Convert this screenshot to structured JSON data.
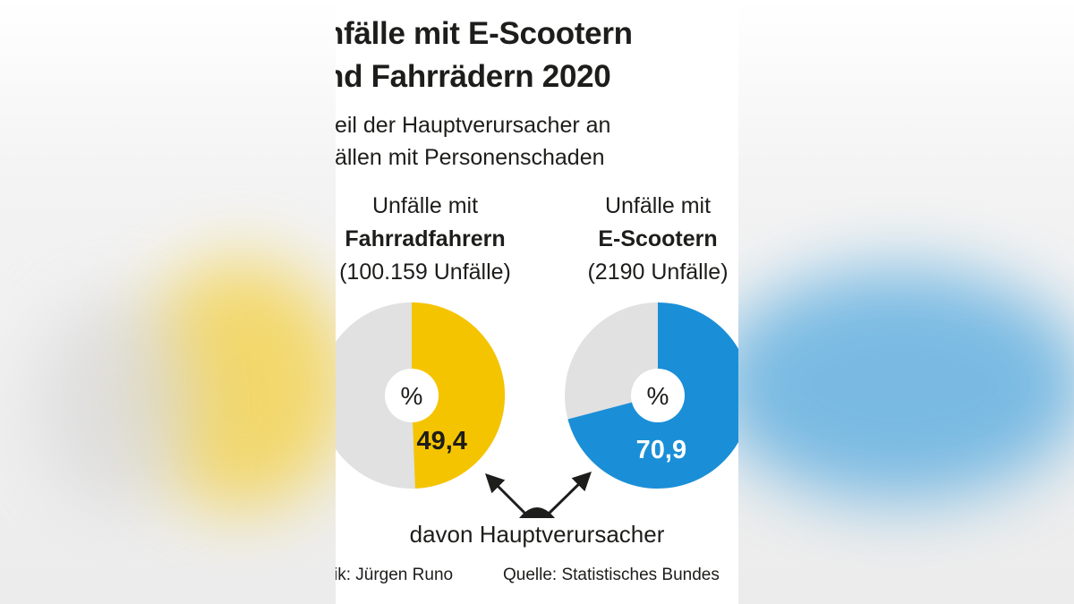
{
  "title_line1": "nfälle mit E-Scootern",
  "title_line2": "nd Fahrrädern 2020",
  "subtitle_line1": "teil der Hauptverursacher an",
  "subtitle_line2": "fällen mit Personenschaden",
  "annotation": "davon Hauptverursacher",
  "credit": "ik: Jürgen Runo",
  "source": "Quelle: Statistisches Bundes",
  "colors": {
    "bike": "#f5c400",
    "scooter": "#1a8fd8",
    "rest": "#e1e1e1",
    "text": "#1d1d1b"
  },
  "chart_data": [
    {
      "type": "pie",
      "label_line1": "Unfälle mit",
      "label_line2": "Fahrradfahrern",
      "label_line3": "(100.159 Unfälle)",
      "center_label": "%",
      "value": 49.4,
      "value_label": "49,4",
      "unit": "%",
      "color": "#f5c400"
    },
    {
      "type": "pie",
      "label_line1": "Unfälle mit",
      "label_line2": "E-Scootern",
      "label_line3": "(2190 Unfälle)",
      "center_label": "%",
      "value": 70.9,
      "value_label": "70,9",
      "unit": "%",
      "color": "#1a8fd8"
    }
  ]
}
